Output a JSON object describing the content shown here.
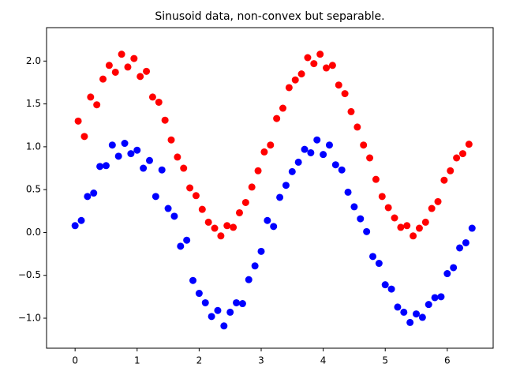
{
  "chart_data": {
    "type": "scatter",
    "title": "Sinusoid data, non-convex but separable.",
    "xlim": [
      -0.46,
      6.74
    ],
    "ylim": [
      -1.35,
      2.39
    ],
    "xticks": [
      0,
      1,
      2,
      3,
      4,
      5,
      6
    ],
    "yticks": [
      {
        "value": -1.0,
        "label": "−1.0"
      },
      {
        "value": -0.5,
        "label": "−0.5"
      },
      {
        "value": 0.0,
        "label": "0.0"
      },
      {
        "value": 0.5,
        "label": "0.5"
      },
      {
        "value": 1.0,
        "label": "1.0"
      },
      {
        "value": 1.5,
        "label": "1.5"
      },
      {
        "value": 2.0,
        "label": "2.0"
      }
    ],
    "grid": false,
    "series": [
      {
        "color": "#0000ff",
        "x": [
          0,
          0.1,
          0.2,
          0.3,
          0.4,
          0.5,
          0.6,
          0.7,
          0.8,
          0.9,
          1.0,
          1.1,
          1.2,
          1.3,
          1.4,
          1.5,
          1.6,
          1.7,
          1.8,
          1.9,
          2.0,
          2.1,
          2.2,
          2.3,
          2.4,
          2.5,
          2.6,
          2.7,
          2.8,
          2.9,
          3.0,
          3.1,
          3.2,
          3.3,
          3.4,
          3.5,
          3.6,
          3.7,
          3.8,
          3.9,
          4.0,
          4.1,
          4.2,
          4.3,
          4.4,
          4.5,
          4.6,
          4.7,
          4.8,
          4.9,
          5.0,
          5.1,
          5.2,
          5.3,
          5.4,
          5.5,
          5.6,
          5.7,
          5.8,
          5.9,
          6.0,
          6.1,
          6.2,
          6.3,
          6.4
        ],
        "values": [
          0.08,
          0.14,
          0.42,
          0.46,
          0.77,
          0.78,
          1.02,
          0.89,
          1.04,
          0.92,
          0.96,
          0.75,
          0.84,
          0.42,
          0.73,
          0.28,
          0.19,
          -0.16,
          -0.09,
          -0.56,
          -0.71,
          -0.82,
          -0.98,
          -0.91,
          -1.09,
          -0.93,
          -0.82,
          -0.83,
          -0.55,
          -0.39,
          -0.22,
          0.14,
          0.07,
          0.41,
          0.55,
          0.71,
          0.82,
          0.97,
          0.93,
          1.08,
          0.91,
          1.02,
          0.79,
          0.73,
          0.47,
          0.3,
          0.16,
          0.01,
          -0.28,
          -0.36,
          -0.61,
          -0.66,
          -0.87,
          -0.93,
          -1.05,
          -0.95,
          -0.99,
          -0.84,
          -0.76,
          -0.75,
          -0.48,
          -0.41,
          -0.18,
          -0.12,
          0.05
        ]
      },
      {
        "color": "#ff0000",
        "x": [
          0.05,
          0.15,
          0.25,
          0.35,
          0.45,
          0.55,
          0.65,
          0.75,
          0.85,
          0.95,
          1.05,
          1.15,
          1.25,
          1.35,
          1.45,
          1.55,
          1.65,
          1.75,
          1.85,
          1.95,
          2.05,
          2.15,
          2.25,
          2.35,
          2.45,
          2.55,
          2.65,
          2.75,
          2.85,
          2.95,
          3.05,
          3.15,
          3.25,
          3.35,
          3.45,
          3.55,
          3.65,
          3.75,
          3.85,
          3.95,
          4.05,
          4.15,
          4.25,
          4.35,
          4.45,
          4.55,
          4.65,
          4.75,
          4.85,
          4.95,
          5.05,
          5.15,
          5.25,
          5.35,
          5.45,
          5.55,
          5.65,
          5.75,
          5.85,
          5.95,
          6.05,
          6.15,
          6.25,
          6.35
        ],
        "values": [
          1.3,
          1.12,
          1.58,
          1.49,
          1.79,
          1.95,
          1.87,
          2.08,
          1.93,
          2.03,
          1.82,
          1.88,
          1.58,
          1.52,
          1.31,
          1.08,
          0.88,
          0.75,
          0.52,
          0.43,
          0.27,
          0.12,
          0.05,
          -0.04,
          0.08,
          0.06,
          0.23,
          0.35,
          0.53,
          0.72,
          0.94,
          1.02,
          1.33,
          1.45,
          1.69,
          1.78,
          1.85,
          2.04,
          1.97,
          2.08,
          1.92,
          1.95,
          1.72,
          1.62,
          1.41,
          1.23,
          1.02,
          0.87,
          0.62,
          0.42,
          0.29,
          0.17,
          0.06,
          0.08,
          -0.04,
          0.05,
          0.12,
          0.28,
          0.36,
          0.61,
          0.72,
          0.87,
          0.92,
          1.03
        ]
      }
    ]
  }
}
